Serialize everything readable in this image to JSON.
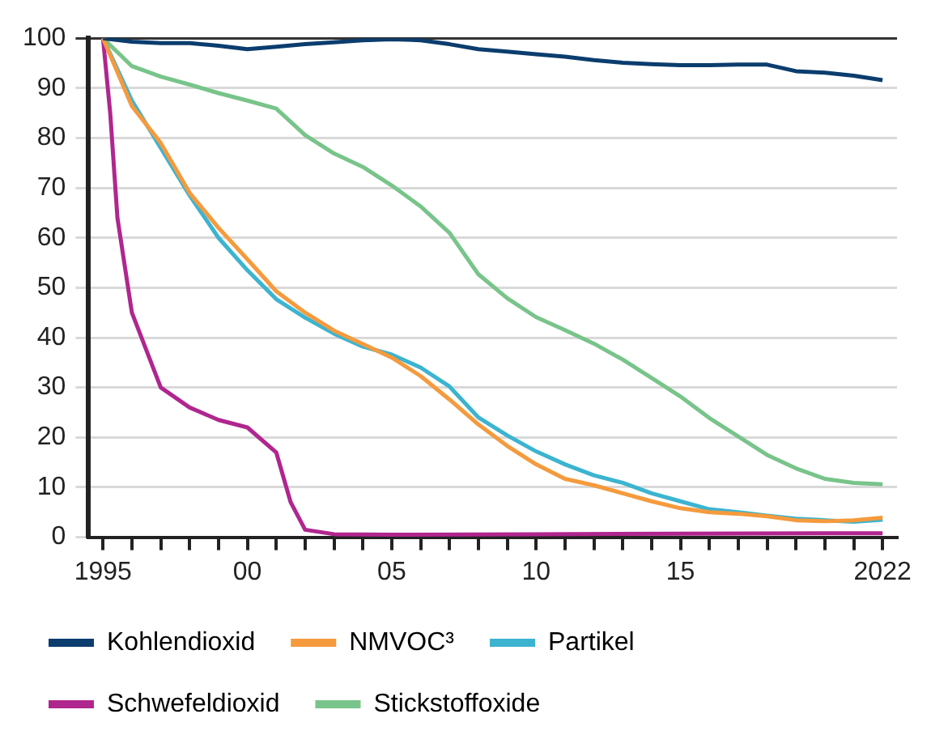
{
  "chart_data": {
    "type": "line",
    "xlim": [
      1994.5,
      2022.5
    ],
    "ylim": [
      0,
      100
    ],
    "xticks": [
      {
        "value": 1995,
        "label": "1995"
      },
      {
        "value": 1996,
        "label": null
      },
      {
        "value": 1997,
        "label": null
      },
      {
        "value": 1998,
        "label": null
      },
      {
        "value": 1999,
        "label": null
      },
      {
        "value": 2000,
        "label": "00"
      },
      {
        "value": 2001,
        "label": null
      },
      {
        "value": 2002,
        "label": null
      },
      {
        "value": 2003,
        "label": null
      },
      {
        "value": 2004,
        "label": null
      },
      {
        "value": 2005,
        "label": "05"
      },
      {
        "value": 2006,
        "label": null
      },
      {
        "value": 2007,
        "label": null
      },
      {
        "value": 2008,
        "label": null
      },
      {
        "value": 2009,
        "label": null
      },
      {
        "value": 2010,
        "label": "10"
      },
      {
        "value": 2011,
        "label": null
      },
      {
        "value": 2012,
        "label": null
      },
      {
        "value": 2013,
        "label": null
      },
      {
        "value": 2014,
        "label": null
      },
      {
        "value": 2015,
        "label": "15"
      },
      {
        "value": 2016,
        "label": null
      },
      {
        "value": 2017,
        "label": null
      },
      {
        "value": 2018,
        "label": null
      },
      {
        "value": 2019,
        "label": null
      },
      {
        "value": 2020,
        "label": null
      },
      {
        "value": 2021,
        "label": null
      },
      {
        "value": 2022,
        "label": "2022"
      }
    ],
    "yticks": [
      0,
      10,
      20,
      30,
      40,
      50,
      60,
      70,
      80,
      90,
      100
    ],
    "grid": "y",
    "legend": "bottom",
    "marker": "none",
    "line_style": "solid",
    "series": [
      {
        "name": "Kohlendioxid",
        "color": "#0b3d6e",
        "x": [
          1995,
          1996,
          1997,
          1998,
          1999,
          2000,
          2001,
          2002,
          2003,
          2004,
          2005,
          2006,
          2007,
          2008,
          2009,
          2010,
          2011,
          2012,
          2013,
          2014,
          2015,
          2016,
          2017,
          2018,
          2019,
          2020,
          2021,
          2022
        ],
        "values": [
          100,
          99.3,
          99,
          99,
          98.5,
          97.8,
          98.3,
          98.8,
          99.2,
          99.6,
          99.8,
          99.6,
          98.8,
          97.8,
          97.3,
          96.8,
          96.3,
          95.6,
          95.1,
          94.8,
          94.6,
          94.6,
          94.7,
          94.7,
          93.4,
          93.1,
          92.5,
          91.6
        ]
      },
      {
        "name": "NMVOC³",
        "color": "#f59a3d",
        "x": [
          1995,
          1996,
          1997,
          1998,
          1999,
          2000,
          2001,
          2002,
          2003,
          2004,
          2005,
          2006,
          2007,
          2008,
          2009,
          2010,
          2011,
          2012,
          2013,
          2014,
          2015,
          2016,
          2017,
          2018,
          2019,
          2020,
          2021,
          2022
        ],
        "values": [
          100,
          86.4,
          79,
          69,
          62,
          55.7,
          49.3,
          45,
          41.4,
          38.7,
          36,
          32.3,
          27.6,
          22.6,
          18.3,
          14.6,
          11.7,
          10.4,
          8.8,
          7.2,
          5.8,
          5,
          4.7,
          4.2,
          3.4,
          3.2,
          3.4,
          3.9
        ]
      },
      {
        "name": "Partikel",
        "color": "#3cb4d0",
        "x": [
          1995,
          1996,
          1997,
          1998,
          1999,
          2000,
          2001,
          2002,
          2003,
          2004,
          2005,
          2006,
          2007,
          2008,
          2009,
          2010,
          2011,
          2012,
          2013,
          2014,
          2015,
          2016,
          2017,
          2018,
          2019,
          2020,
          2021,
          2022
        ],
        "values": [
          100,
          87.5,
          78,
          68.5,
          60,
          53.5,
          47.7,
          44,
          40.8,
          38.2,
          36.6,
          34,
          30.2,
          24,
          20.4,
          17.2,
          14.6,
          12.4,
          10.9,
          8.8,
          7.2,
          5.6,
          5,
          4.3,
          3.7,
          3.4,
          3.1,
          3.5
        ]
      },
      {
        "name": "Schwefeldioxid",
        "color": "#b0268f",
        "x": [
          1995,
          1995.25,
          1995.5,
          1996,
          1997,
          1998,
          1999,
          2000,
          2001,
          2001.5,
          2002,
          2003,
          2005,
          2010,
          2015,
          2022
        ],
        "values": [
          100,
          85,
          64,
          45,
          30,
          26,
          23.5,
          22,
          17,
          7,
          1.5,
          0.6,
          0.5,
          0.6,
          0.7,
          0.8
        ]
      },
      {
        "name": "Stickstoffoxide",
        "color": "#78c48a",
        "x": [
          1995,
          1996,
          1997,
          1998,
          1999,
          2000,
          2001,
          2002,
          2003,
          2004,
          2005,
          2006,
          2007,
          2008,
          2009,
          2010,
          2011,
          2012,
          2013,
          2014,
          2015,
          2016,
          2017,
          2018,
          2019,
          2020,
          2021,
          2022
        ],
        "values": [
          100,
          94.4,
          92.3,
          90.7,
          89,
          87.5,
          85.9,
          80.6,
          76.9,
          74.2,
          70.5,
          66.3,
          61,
          52.7,
          47.9,
          44.1,
          41.5,
          38.8,
          35.6,
          31.9,
          28.2,
          23.9,
          20.2,
          16.5,
          13.8,
          11.7,
          10.9,
          10.6
        ]
      }
    ]
  }
}
